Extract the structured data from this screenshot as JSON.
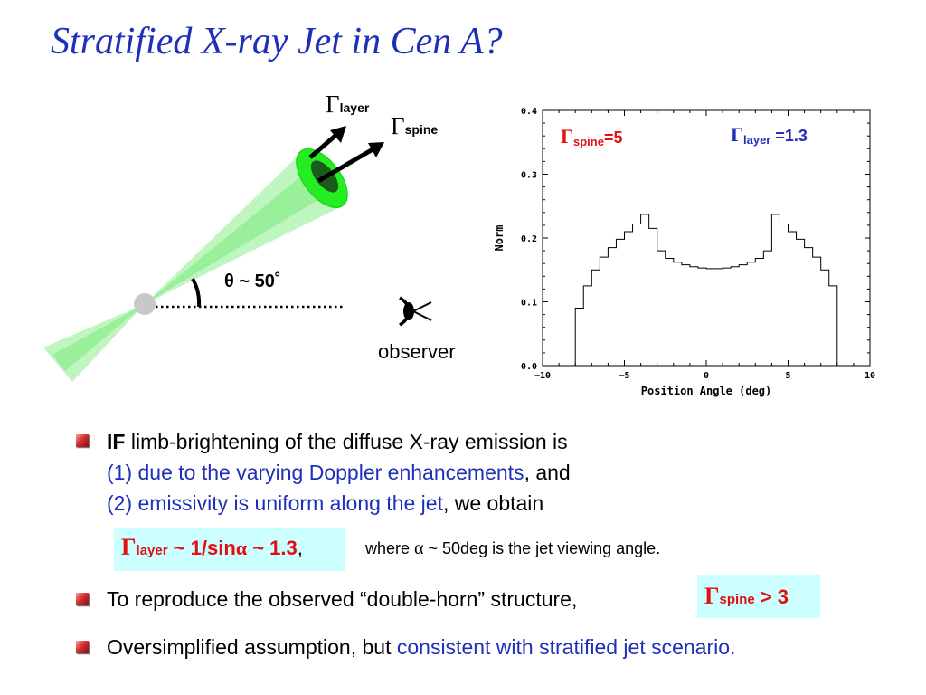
{
  "slide": {
    "title": "Stratified X-ray Jet in Cen A?"
  },
  "diagram": {
    "gamma_symbol": "Γ",
    "layer_sub": "layer",
    "spine_sub": "spine",
    "theta_label": "θ ~ 50˚",
    "observer_label": "observer",
    "colors": {
      "jet": "#33ee33",
      "jet_light": "#aaf5aa",
      "core": "#c8c8c8"
    }
  },
  "chart_data": {
    "type": "line",
    "title": "",
    "xlabel": "Position Angle (deg)",
    "ylabel": "Norm",
    "xlim": [
      -10,
      10
    ],
    "ylim": [
      0.0,
      0.4
    ],
    "xticks": [
      -10,
      -5,
      0,
      5,
      10
    ],
    "xtick_labels": [
      "−10",
      "−5",
      "0",
      "5",
      "10"
    ],
    "yticks": [
      0.0,
      0.1,
      0.2,
      0.3,
      0.4
    ],
    "ytick_labels": [
      "0.0",
      "0.1",
      "0.2",
      "0.3",
      "0.4"
    ],
    "annotation_spine": {
      "gamma": "Γ",
      "sub": "spine",
      "value": "=5",
      "color": "#e01010"
    },
    "annotation_layer": {
      "gamma": "Γ",
      "sub": "layer",
      "value": " =1.3",
      "color": "#1f2fb8"
    },
    "step_x": [
      -8.0,
      -7.5,
      -7.0,
      -6.5,
      -6.0,
      -5.5,
      -5.0,
      -4.5,
      -4.0,
      -3.5,
      -3.0,
      -2.5,
      -2.0,
      -1.5,
      -1.0,
      -0.5,
      0.0,
      0.5,
      1.0,
      1.5,
      2.0,
      2.5,
      3.0,
      3.5,
      4.0,
      4.5,
      5.0,
      5.5,
      6.0,
      6.5,
      7.0,
      7.5,
      8.0
    ],
    "step_y": [
      0.09,
      0.125,
      0.15,
      0.17,
      0.185,
      0.198,
      0.21,
      0.222,
      0.237,
      0.215,
      0.18,
      0.168,
      0.162,
      0.158,
      0.155,
      0.153,
      0.152,
      0.152,
      0.153,
      0.155,
      0.158,
      0.162,
      0.168,
      0.18,
      0.237,
      0.222,
      0.21,
      0.198,
      0.185,
      0.17,
      0.15,
      0.125,
      0.09
    ]
  },
  "bullets": [
    {
      "lead": "IF",
      "text": " limb-brightening of the diffuse X-ray emission is",
      "line2_blue": "(1) due to the varying Doppler enhancements",
      "line2_black": ", and",
      "line3_blue": "(2) emissivity is uniform along the jet",
      "line3_black": ", we obtain"
    },
    {
      "text": "To reproduce the observed “double-horn” structure,"
    },
    {
      "text": "Oversimplified assumption, but ",
      "text_blue": "consistent with stratified jet scenario."
    }
  ],
  "formula_layer": {
    "gamma": "Γ",
    "sub": "layer",
    "rest": " ~ 1/sin",
    "alpha": "α",
    "tail": " ~ 1.3",
    "comma": ",",
    "note_pre": "where ",
    "note_alpha": "α",
    "note_post": " ~ 50deg is the jet viewing angle."
  },
  "formula_spine": {
    "gamma": "Γ",
    "sub": "spine",
    "rest": " > 3"
  }
}
